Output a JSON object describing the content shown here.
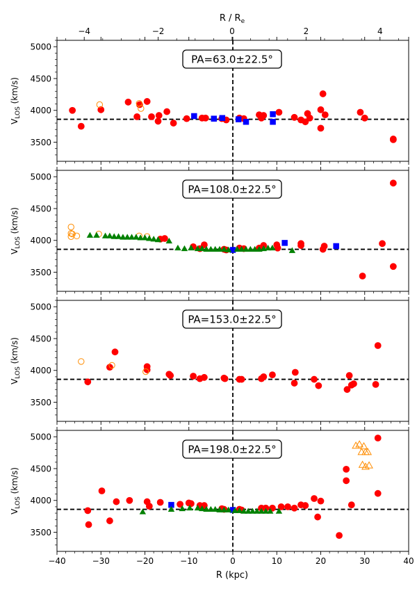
{
  "chart_data": {
    "type": "scatter",
    "top_axis": {
      "label": "R / R",
      "label_sub": "e",
      "ticks": [
        -4,
        -2,
        0,
        2,
        4
      ],
      "tick_labels": [
        "−4",
        "−2",
        "0",
        "2",
        "4"
      ]
    },
    "xlabel": "R (kpc)",
    "ylabel_main": "V",
    "ylabel_sub": "LOS",
    "ylabel_unit": " (km/s)",
    "xlim": [
      -40,
      40
    ],
    "ylim": [
      3200,
      5100
    ],
    "xticks": [
      -40,
      -30,
      -20,
      -10,
      0,
      10,
      20,
      30,
      40
    ],
    "xtick_labels": [
      "−40",
      "−30",
      "−20",
      "−10",
      "0",
      "10",
      "20",
      "30",
      "40"
    ],
    "yticks": [
      3500,
      4000,
      4500,
      5000
    ],
    "reference_velocity": 3860,
    "colors": {
      "red": "#ff0000",
      "blue": "#0000ff",
      "green": "#008000",
      "orange": "#ff8c00"
    },
    "panels": [
      {
        "pa_label": "PA=63.0±22.5°",
        "series": [
          {
            "name": "red-filled-circles",
            "marker": "circle",
            "color": "red",
            "filled": true,
            "points": [
              [
                -36.5,
                4000
              ],
              [
                -34.5,
                3750
              ],
              [
                -30,
                4010
              ],
              [
                -23.8,
                4130
              ],
              [
                -21.8,
                3900
              ],
              [
                -21.2,
                4090
              ],
              [
                -19.5,
                4140
              ],
              [
                -18.5,
                3900
              ],
              [
                -17,
                3830
              ],
              [
                -16.8,
                3920
              ],
              [
                -15,
                3980
              ],
              [
                -13.5,
                3800
              ],
              [
                -10.5,
                3870
              ],
              [
                -7,
                3880
              ],
              [
                -6.2,
                3880
              ],
              [
                -2.5,
                3870
              ],
              [
                -1.5,
                3850
              ],
              [
                1.5,
                3880
              ],
              [
                2.5,
                3870
              ],
              [
                6,
                3930
              ],
              [
                6.5,
                3880
              ],
              [
                7,
                3920
              ],
              [
                10.5,
                3970
              ],
              [
                14,
                3890
              ],
              [
                15.5,
                3850
              ],
              [
                16.5,
                3820
              ],
              [
                17,
                3950
              ],
              [
                17.5,
                3880
              ],
              [
                20,
                3720
              ],
              [
                20,
                4010
              ],
              [
                20.5,
                4260
              ],
              [
                21,
                3930
              ],
              [
                29,
                3970
              ],
              [
                30,
                3880
              ],
              [
                36.5,
                3540
              ],
              [
                36.5,
                3550
              ]
            ]
          },
          {
            "name": "blue-squares",
            "marker": "square",
            "color": "blue",
            "filled": true,
            "points": [
              [
                -8.8,
                3910
              ],
              [
                -4.3,
                3870
              ],
              [
                -2.4,
                3880
              ],
              [
                1.3,
                3860
              ],
              [
                3,
                3820
              ],
              [
                9.1,
                3940
              ],
              [
                9.1,
                3820
              ]
            ]
          },
          {
            "name": "orange-open-circles",
            "marker": "circle",
            "color": "orange",
            "filled": false,
            "points": [
              [
                -30.3,
                4090
              ],
              [
                -21.3,
                4110
              ],
              [
                -20.9,
                4030
              ]
            ]
          }
        ]
      },
      {
        "pa_label": "PA=108.0±22.5°",
        "series": [
          {
            "name": "red-filled-circles",
            "marker": "circle",
            "color": "red",
            "filled": true,
            "points": [
              [
                -16.5,
                4020
              ],
              [
                -15.5,
                4030
              ],
              [
                -9,
                3900
              ],
              [
                -7.5,
                3870
              ],
              [
                -6.5,
                3930
              ],
              [
                -2,
                3860
              ],
              [
                -1.5,
                3850
              ],
              [
                1.5,
                3880
              ],
              [
                2.5,
                3870
              ],
              [
                6,
                3880
              ],
              [
                7,
                3920
              ],
              [
                10,
                3930
              ],
              [
                10.2,
                3880
              ],
              [
                15.5,
                3920
              ],
              [
                15.5,
                3950
              ],
              [
                20.5,
                3860
              ],
              [
                20.8,
                3910
              ],
              [
                29.5,
                3440
              ],
              [
                34,
                3950
              ],
              [
                36.5,
                4900
              ],
              [
                36.5,
                3590
              ]
            ]
          },
          {
            "name": "blue-squares",
            "marker": "square",
            "color": "blue",
            "filled": true,
            "points": [
              [
                0,
                3850
              ],
              [
                11.8,
                3960
              ],
              [
                23.5,
                3910
              ]
            ]
          },
          {
            "name": "orange-open-circles",
            "marker": "circle",
            "color": "orange",
            "filled": false,
            "points": [
              [
                -36.8,
                4210
              ],
              [
                -36.8,
                4110
              ],
              [
                -36.8,
                4060
              ],
              [
                -36.5,
                4100
              ],
              [
                -35.5,
                4070
              ],
              [
                -30.5,
                4100
              ],
              [
                -21.3,
                4070
              ],
              [
                -19.5,
                4060
              ]
            ]
          },
          {
            "name": "green-triangles",
            "marker": "triangle",
            "color": "green",
            "filled": true,
            "points": [
              [
                -32.5,
                4080
              ],
              [
                -31,
                4080
              ],
              [
                -29,
                4070
              ],
              [
                -28,
                4070
              ],
              [
                -27,
                4060
              ],
              [
                -26,
                4060
              ],
              [
                -25,
                4050
              ],
              [
                -24,
                4050
              ],
              [
                -23,
                4050
              ],
              [
                -22,
                4050
              ],
              [
                -21,
                4040
              ],
              [
                -20,
                4040
              ],
              [
                -19,
                4030
              ],
              [
                -18,
                4020
              ],
              [
                -17,
                4010
              ],
              [
                -14.5,
                3990
              ],
              [
                -12.5,
                3880
              ],
              [
                -11,
                3870
              ],
              [
                -9.5,
                3880
              ],
              [
                -8,
                3870
              ],
              [
                -7,
                3870
              ],
              [
                -6,
                3860
              ],
              [
                -5,
                3860
              ],
              [
                -4,
                3860
              ],
              [
                -3,
                3860
              ],
              [
                -2,
                3860
              ],
              [
                -1,
                3850
              ],
              [
                1,
                3860
              ],
              [
                2,
                3860
              ],
              [
                3,
                3860
              ],
              [
                4,
                3860
              ],
              [
                5,
                3860
              ],
              [
                6,
                3860
              ],
              [
                7,
                3870
              ],
              [
                8,
                3880
              ],
              [
                9,
                3880
              ],
              [
                13.5,
                3840
              ]
            ]
          }
        ]
      },
      {
        "pa_label": "PA=153.0±22.5°",
        "series": [
          {
            "name": "red-filled-circles",
            "marker": "circle",
            "color": "red",
            "filled": true,
            "points": [
              [
                -33,
                3820
              ],
              [
                -26.8,
                4290
              ],
              [
                -28,
                4050
              ],
              [
                -19.5,
                4060
              ],
              [
                -19.5,
                4010
              ],
              [
                -14.5,
                3940
              ],
              [
                -14.2,
                3920
              ],
              [
                -9,
                3910
              ],
              [
                -7.5,
                3870
              ],
              [
                -6.5,
                3890
              ],
              [
                -2,
                3880
              ],
              [
                -1.8,
                3870
              ],
              [
                1.5,
                3860
              ],
              [
                2,
                3860
              ],
              [
                6.5,
                3870
              ],
              [
                7,
                3900
              ],
              [
                9,
                3930
              ],
              [
                14,
                3800
              ],
              [
                14.2,
                3970
              ],
              [
                18.5,
                3860
              ],
              [
                19.5,
                3760
              ],
              [
                26,
                3700
              ],
              [
                26.5,
                3920
              ],
              [
                27,
                3770
              ],
              [
                27.5,
                3790
              ],
              [
                32.5,
                3780
              ],
              [
                33,
                4390
              ]
            ]
          },
          {
            "name": "orange-open-circles",
            "marker": "circle",
            "color": "orange",
            "filled": false,
            "points": [
              [
                -34.5,
                4140
              ],
              [
                -27.5,
                4080
              ],
              [
                -19.8,
                3980
              ]
            ]
          }
        ]
      },
      {
        "pa_label": "PA=198.0±22.5°",
        "series": [
          {
            "name": "red-filled-circles",
            "marker": "circle",
            "color": "red",
            "filled": true,
            "points": [
              [
                -33,
                3840
              ],
              [
                -32.8,
                3620
              ],
              [
                -29.8,
                4150
              ],
              [
                -28,
                3680
              ],
              [
                -26.5,
                3980
              ],
              [
                -23.5,
                4000
              ],
              [
                -19.5,
                3980
              ],
              [
                -19,
                3910
              ],
              [
                -16.5,
                3970
              ],
              [
                -12,
                3940
              ],
              [
                -10,
                3960
              ],
              [
                -9.5,
                3950
              ],
              [
                -7.5,
                3920
              ],
              [
                -6.5,
                3920
              ],
              [
                -2.5,
                3870
              ],
              [
                -2,
                3860
              ],
              [
                1.5,
                3860
              ],
              [
                2,
                3850
              ],
              [
                6.5,
                3880
              ],
              [
                7.5,
                3880
              ],
              [
                9,
                3880
              ],
              [
                11,
                3900
              ],
              [
                12.5,
                3900
              ],
              [
                14,
                3880
              ],
              [
                15.5,
                3930
              ],
              [
                16.5,
                3920
              ],
              [
                18.5,
                4030
              ],
              [
                19.3,
                3740
              ],
              [
                20,
                3990
              ],
              [
                24.2,
                3450
              ],
              [
                25.8,
                4490
              ],
              [
                25.8,
                4310
              ],
              [
                27,
                3930
              ],
              [
                33,
                4980
              ],
              [
                33,
                4110
              ]
            ]
          },
          {
            "name": "blue-squares",
            "marker": "square",
            "color": "blue",
            "filled": true,
            "points": [
              [
                -14,
                3930
              ],
              [
                0,
                3850
              ]
            ]
          },
          {
            "name": "green-triangles",
            "marker": "triangle",
            "color": "green",
            "filled": true,
            "points": [
              [
                -20.5,
                3820
              ],
              [
                -14,
                3860
              ],
              [
                -11.5,
                3870
              ],
              [
                -9.8,
                3880
              ],
              [
                -8,
                3880
              ],
              [
                -7,
                3870
              ],
              [
                -6,
                3860
              ],
              [
                -5,
                3860
              ],
              [
                -4,
                3860
              ],
              [
                -3,
                3850
              ],
              [
                -2,
                3850
              ],
              [
                -1,
                3850
              ],
              [
                0.5,
                3840
              ],
              [
                1.5,
                3840
              ],
              [
                2.5,
                3830
              ],
              [
                3.5,
                3830
              ],
              [
                4.5,
                3830
              ],
              [
                5.5,
                3830
              ],
              [
                6.5,
                3830
              ],
              [
                7.5,
                3830
              ],
              [
                8.5,
                3830
              ],
              [
                10.5,
                3830
              ]
            ]
          },
          {
            "name": "orange-open-triangles",
            "marker": "triangle",
            "color": "orange",
            "filled": false,
            "points": [
              [
                28,
                4860
              ],
              [
                28.8,
                4880
              ],
              [
                29.3,
                4760
              ],
              [
                29.8,
                4850
              ],
              [
                30.2,
                4760
              ],
              [
                30.7,
                4760
              ],
              [
                29.5,
                4560
              ],
              [
                30.2,
                4530
              ],
              [
                31,
                4550
              ]
            ]
          }
        ]
      }
    ]
  }
}
